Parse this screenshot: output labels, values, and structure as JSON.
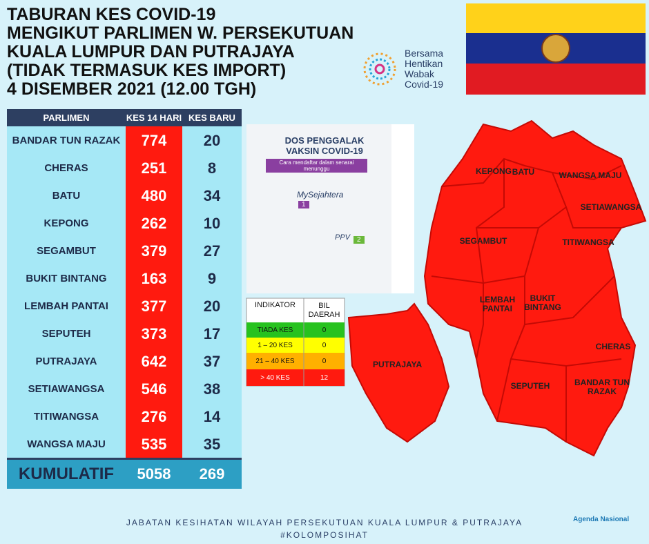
{
  "header": {
    "title_lines": [
      "TABURAN KES COVID-19",
      "MENGIKUT PARLIMEN W. PERSEKUTUAN",
      "KUALA LUMPUR DAN PUTRAJAYA",
      "(TIDAK TERMASUK KES IMPORT)",
      "4 DISEMBER 2021 (12.00 TGH)"
    ],
    "campaign": [
      "Bersama",
      "Hentikan",
      "Wabak",
      "Covid-19"
    ]
  },
  "table": {
    "columns": [
      "PARLIMEN",
      "KES 14 HARI",
      "KES BARU"
    ],
    "rows": [
      [
        "BANDAR TUN RAZAK",
        774,
        20
      ],
      [
        "CHERAS",
        251,
        8
      ],
      [
        "BATU",
        480,
        34
      ],
      [
        "KEPONG",
        262,
        10
      ],
      [
        "SEGAMBUT",
        379,
        27
      ],
      [
        "BUKIT BINTANG",
        163,
        9
      ],
      [
        "LEMBAH PANTAI",
        377,
        20
      ],
      [
        "SEPUTEH",
        373,
        17
      ],
      [
        "PUTRAJAYA",
        642,
        37
      ],
      [
        "SETIAWANGSA",
        546,
        38
      ],
      [
        "TITIWANGSA",
        276,
        14
      ],
      [
        "WANGSA MAJU",
        535,
        35
      ]
    ],
    "total": [
      "KUMULATIF",
      5058,
      269
    ]
  },
  "poster": {
    "title": "DOS PENGGALAK VAKSIN COVID-19",
    "subtitle": "Cara mendaftar dalam senarai menunggu",
    "app": "MySejahtera",
    "ppv": "PPV",
    "step1": "1",
    "step2": "2"
  },
  "legend": {
    "columns": [
      "INDIKATOR",
      "BIL DAERAH"
    ],
    "rows": [
      [
        "TIADA KES",
        0
      ],
      [
        "1 – 20 KES",
        0
      ],
      [
        "21 – 40 KES",
        0
      ],
      [
        "> 40 KES",
        12
      ]
    ]
  },
  "map_labels": [
    "KEPONG",
    "BATU",
    "WANGSA MAJU",
    "SETIAWANGSA",
    "SEGAMBUT",
    "TITIWANGSA",
    "LEMBAH PANTAI",
    "BUKIT BINTANG",
    "CHERAS",
    "PUTRAJAYA",
    "SEPUTEH",
    "BANDAR TUN RAZAK"
  ],
  "footer": [
    "JABATAN KESIHATAN WILAYAH PERSEKUTUAN KUALA LUMPUR & PUTRAJAYA",
    "#KOLOMPOSIHAT"
  ],
  "agenda": "Agenda Nasional"
}
